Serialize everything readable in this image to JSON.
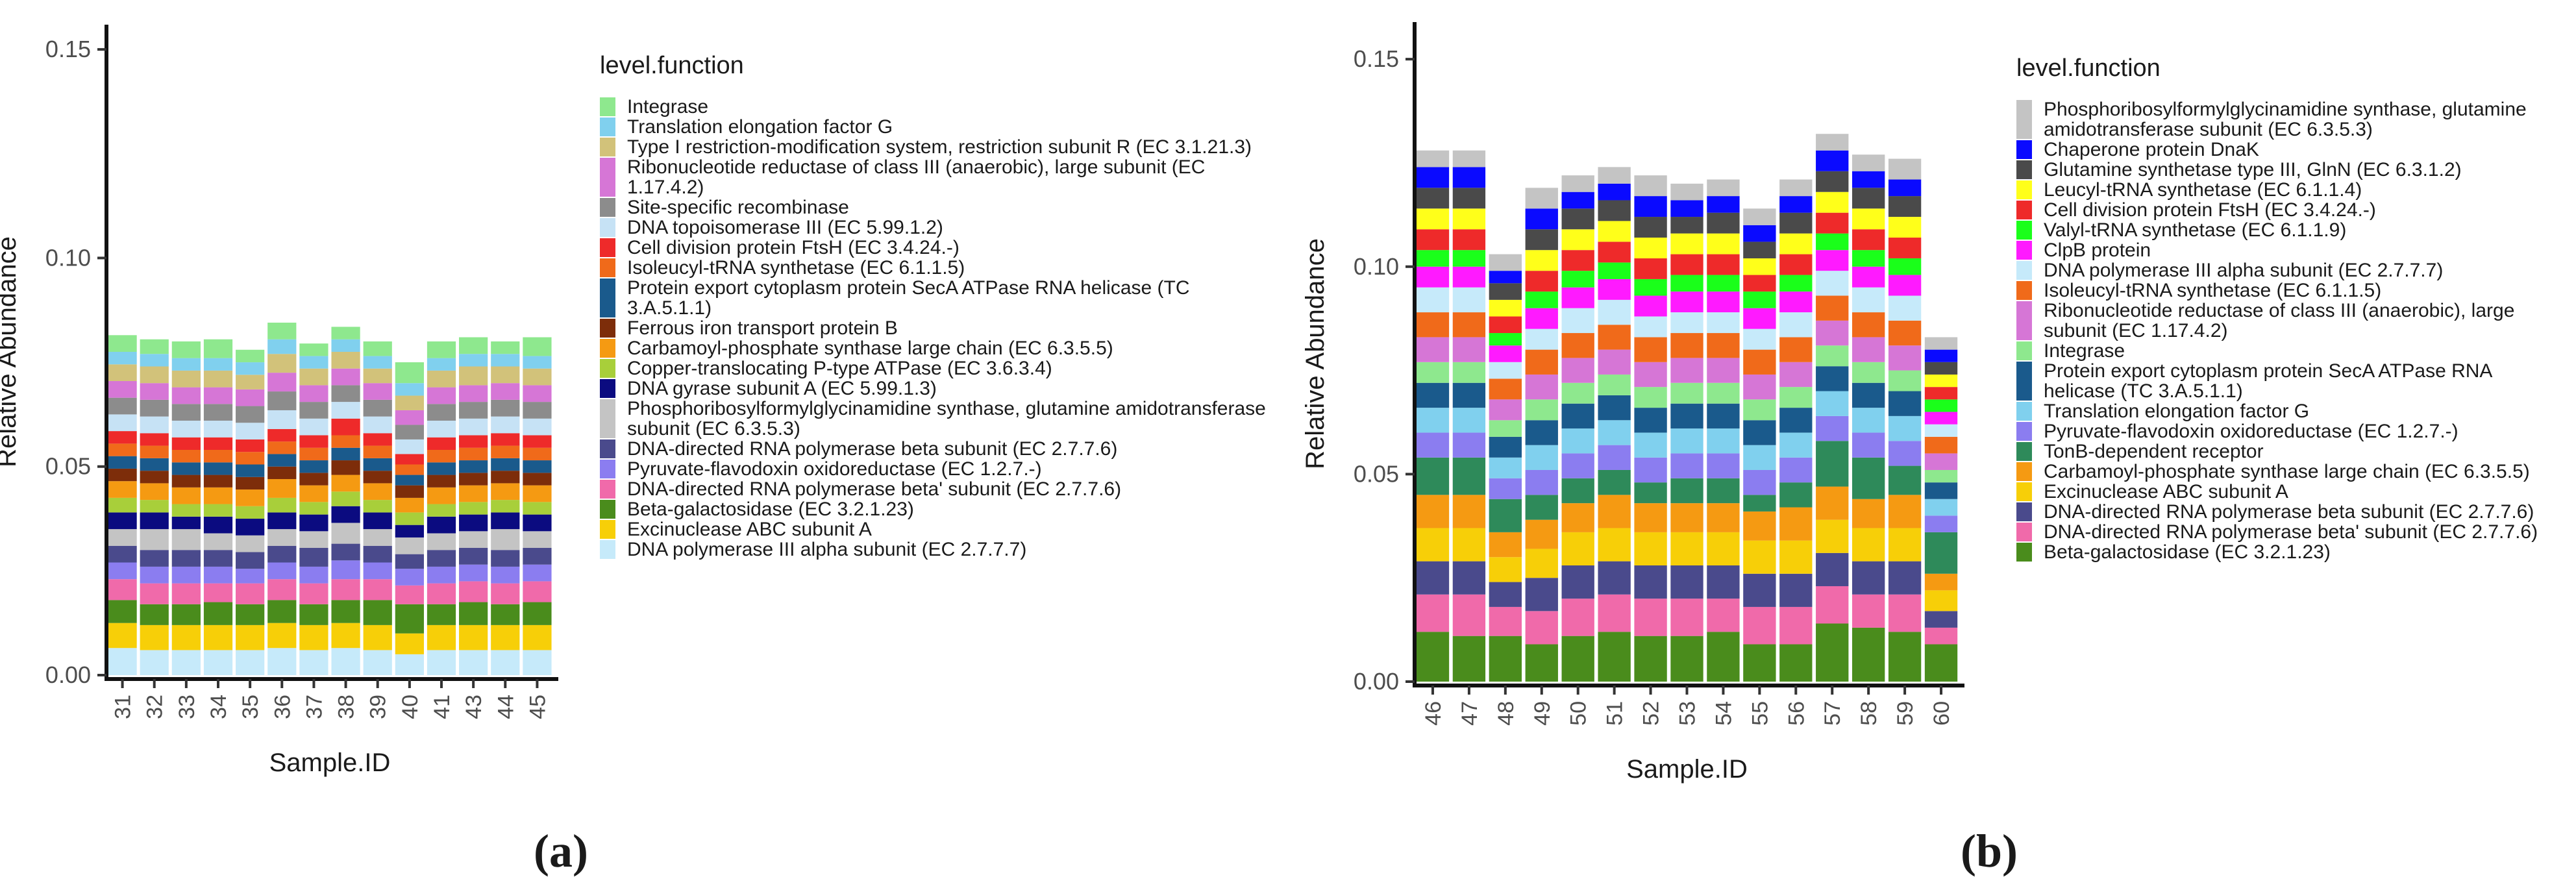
{
  "chart_data": [
    {
      "type": "bar",
      "stacked": true,
      "panel_label": "a",
      "xlabel": "Sample.ID",
      "ylabel": "Relative Abundance",
      "ylim": [
        0,
        0.155
      ],
      "yticks": [
        0.0,
        0.05,
        0.1,
        0.15
      ],
      "ytick_labels": [
        "0.00",
        "0.05",
        "0.10",
        "0.15"
      ],
      "legend_title": "level.function",
      "categories": [
        "31",
        "32",
        "33",
        "34",
        "35",
        "36",
        "37",
        "38",
        "39",
        "40",
        "41",
        "43",
        "44",
        "45"
      ],
      "series": [
        {
          "name": "DNA polymerase III alpha subunit (EC 2.7.7.7)",
          "color": "#c6eafa",
          "values": [
            0.0065,
            0.006,
            0.006,
            0.006,
            0.006,
            0.0065,
            0.006,
            0.0065,
            0.006,
            0.005,
            0.006,
            0.006,
            0.006,
            0.006
          ]
        },
        {
          "name": "Excinuclease ABC subunit A",
          "color": "#f7cf08",
          "values": [
            0.006,
            0.006,
            0.006,
            0.006,
            0.006,
            0.006,
            0.006,
            0.006,
            0.006,
            0.005,
            0.006,
            0.006,
            0.006,
            0.006
          ]
        },
        {
          "name": "Beta-galactosidase (EC 3.2.1.23)",
          "color": "#4a8c1c",
          "values": [
            0.0055,
            0.005,
            0.005,
            0.0055,
            0.005,
            0.0055,
            0.005,
            0.0055,
            0.006,
            0.007,
            0.005,
            0.0055,
            0.005,
            0.0055
          ]
        },
        {
          "name": "DNA-directed RNA polymerase beta' subunit (EC 2.7.7.6)",
          "color": "#f06aaa",
          "values": [
            0.005,
            0.005,
            0.005,
            0.0045,
            0.005,
            0.005,
            0.005,
            0.005,
            0.005,
            0.0045,
            0.005,
            0.005,
            0.005,
            0.005
          ]
        },
        {
          "name": "Pyruvate-flavodoxin oxidoreductase (EC 1.2.7.-)",
          "color": "#8b7df0",
          "values": [
            0.004,
            0.004,
            0.004,
            0.004,
            0.0035,
            0.004,
            0.004,
            0.0045,
            0.004,
            0.004,
            0.004,
            0.004,
            0.004,
            0.004
          ]
        },
        {
          "name": "DNA-directed RNA polymerase beta subunit (EC 2.7.7.6)",
          "color": "#4a4a8c",
          "values": [
            0.004,
            0.004,
            0.004,
            0.004,
            0.004,
            0.004,
            0.0045,
            0.004,
            0.004,
            0.0035,
            0.004,
            0.004,
            0.004,
            0.004
          ]
        },
        {
          "name": "Phosphoribosylformylglycinamidine synthase, glutamine amidotransferase subunit (EC 6.3.5.3)",
          "color": "#c4c4c4",
          "values": [
            0.004,
            0.005,
            0.005,
            0.004,
            0.004,
            0.004,
            0.004,
            0.005,
            0.004,
            0.004,
            0.004,
            0.004,
            0.005,
            0.004
          ]
        },
        {
          "name": "DNA gyrase subunit A (EC 5.99.1.3)",
          "color": "#0b0b80",
          "values": [
            0.004,
            0.004,
            0.003,
            0.004,
            0.004,
            0.004,
            0.004,
            0.004,
            0.004,
            0.003,
            0.004,
            0.004,
            0.004,
            0.004
          ]
        },
        {
          "name": "Copper-translocating P-type ATPase (EC 3.6.3.4)",
          "color": "#a8cf3a",
          "values": [
            0.0035,
            0.003,
            0.003,
            0.003,
            0.003,
            0.0035,
            0.003,
            0.0035,
            0.003,
            0.003,
            0.003,
            0.003,
            0.003,
            0.003
          ]
        },
        {
          "name": "Carbamoyl-phosphate synthase large chain (EC 6.3.5.5)",
          "color": "#f59a12",
          "values": [
            0.004,
            0.004,
            0.004,
            0.004,
            0.004,
            0.0045,
            0.004,
            0.004,
            0.004,
            0.0035,
            0.004,
            0.004,
            0.004,
            0.004
          ]
        },
        {
          "name": "Ferrous iron transport protein B",
          "color": "#7d2d0a",
          "values": [
            0.003,
            0.003,
            0.003,
            0.003,
            0.003,
            0.003,
            0.003,
            0.0035,
            0.003,
            0.003,
            0.003,
            0.003,
            0.003,
            0.003
          ]
        },
        {
          "name": "Protein export cytoplasm protein SecA ATPase RNA helicase (TC 3.A.5.1.1)",
          "color": "#1a5a8c",
          "values": [
            0.003,
            0.003,
            0.003,
            0.003,
            0.003,
            0.003,
            0.003,
            0.003,
            0.003,
            0.0025,
            0.003,
            0.003,
            0.003,
            0.003
          ]
        },
        {
          "name": "Isoleucyl-tRNA synthetase (EC 6.1.1.5)",
          "color": "#f06a1a",
          "values": [
            0.003,
            0.003,
            0.003,
            0.003,
            0.003,
            0.003,
            0.003,
            0.003,
            0.003,
            0.0025,
            0.003,
            0.003,
            0.003,
            0.003
          ]
        },
        {
          "name": "Cell division protein FtsH (EC 3.4.24.-)",
          "color": "#ee2a2a",
          "values": [
            0.003,
            0.003,
            0.003,
            0.003,
            0.003,
            0.003,
            0.003,
            0.004,
            0.003,
            0.0025,
            0.003,
            0.003,
            0.003,
            0.003
          ]
        },
        {
          "name": "DNA topoisomerase III (EC 5.99.1.2)",
          "color": "#c6e2f5",
          "values": [
            0.004,
            0.004,
            0.004,
            0.004,
            0.004,
            0.0045,
            0.004,
            0.004,
            0.004,
            0.0035,
            0.004,
            0.004,
            0.004,
            0.004
          ]
        },
        {
          "name": "Site-specific recombinase",
          "color": "#8c8c8c",
          "values": [
            0.004,
            0.004,
            0.004,
            0.004,
            0.004,
            0.0045,
            0.004,
            0.004,
            0.004,
            0.0035,
            0.004,
            0.004,
            0.004,
            0.004
          ]
        },
        {
          "name": "Ribonucleotide reductase of class III (anaerobic), large subunit (EC 1.17.4.2)",
          "color": "#d676d6",
          "values": [
            0.004,
            0.004,
            0.004,
            0.004,
            0.004,
            0.0045,
            0.004,
            0.004,
            0.004,
            0.0035,
            0.004,
            0.004,
            0.004,
            0.004
          ]
        },
        {
          "name": "Type I restriction-modification system, restriction subunit R (EC 3.1.21.3)",
          "color": "#d2c27a",
          "values": [
            0.004,
            0.004,
            0.004,
            0.004,
            0.0035,
            0.0045,
            0.004,
            0.004,
            0.0035,
            0.0035,
            0.004,
            0.0045,
            0.004,
            0.004
          ]
        },
        {
          "name": "Translation elongation factor G",
          "color": "#80d0ee",
          "values": [
            0.003,
            0.003,
            0.003,
            0.003,
            0.003,
            0.0035,
            0.003,
            0.003,
            0.003,
            0.003,
            0.003,
            0.003,
            0.003,
            0.003
          ]
        },
        {
          "name": "Integrase",
          "color": "#8ee88e",
          "values": [
            0.004,
            0.0035,
            0.004,
            0.0045,
            0.003,
            0.004,
            0.003,
            0.003,
            0.0035,
            0.005,
            0.004,
            0.004,
            0.003,
            0.0045
          ]
        }
      ]
    },
    {
      "type": "bar",
      "stacked": true,
      "panel_label": "b",
      "xlabel": "Sample.ID",
      "ylabel": "Relative Abundance",
      "ylim": [
        0,
        0.158
      ],
      "yticks": [
        0.0,
        0.05,
        0.1,
        0.15
      ],
      "ytick_labels": [
        "0.00",
        "0.05",
        "0.10",
        "0.15"
      ],
      "legend_title": "level.function",
      "categories": [
        "46",
        "47",
        "48",
        "49",
        "50",
        "51",
        "52",
        "53",
        "54",
        "55",
        "56",
        "57",
        "58",
        "59",
        "60"
      ],
      "series": [
        {
          "name": "Beta-galactosidase (EC 3.2.1.23)",
          "color": "#4a8c1c",
          "values": [
            0.012,
            0.011,
            0.011,
            0.009,
            0.011,
            0.012,
            0.011,
            0.011,
            0.012,
            0.009,
            0.009,
            0.014,
            0.013,
            0.012,
            0.009
          ]
        },
        {
          "name": "DNA-directed RNA polymerase beta' subunit (EC 2.7.7.6)",
          "color": "#f06aaa",
          "values": [
            0.009,
            0.01,
            0.007,
            0.008,
            0.009,
            0.009,
            0.009,
            0.009,
            0.008,
            0.009,
            0.009,
            0.009,
            0.008,
            0.009,
            0.004
          ]
        },
        {
          "name": "DNA-directed RNA polymerase beta subunit (EC 2.7.7.6)",
          "color": "#4a4a8c",
          "values": [
            0.008,
            0.008,
            0.006,
            0.008,
            0.008,
            0.008,
            0.008,
            0.008,
            0.008,
            0.008,
            0.008,
            0.008,
            0.008,
            0.008,
            0.004
          ]
        },
        {
          "name": "Excinuclease ABC subunit A",
          "color": "#f7cf08",
          "values": [
            0.008,
            0.008,
            0.006,
            0.007,
            0.008,
            0.008,
            0.008,
            0.008,
            0.008,
            0.008,
            0.008,
            0.008,
            0.008,
            0.008,
            0.005
          ]
        },
        {
          "name": "Carbamoyl-phosphate synthase large chain (EC 6.3.5.5)",
          "color": "#f59a12",
          "values": [
            0.008,
            0.008,
            0.006,
            0.007,
            0.007,
            0.008,
            0.007,
            0.007,
            0.007,
            0.007,
            0.008,
            0.008,
            0.007,
            0.008,
            0.004
          ]
        },
        {
          "name": "TonB-dependent receptor",
          "color": "#2e8a5a",
          "values": [
            0.009,
            0.009,
            0.008,
            0.006,
            0.006,
            0.006,
            0.005,
            0.006,
            0.006,
            0.004,
            0.006,
            0.011,
            0.01,
            0.007,
            0.01
          ]
        },
        {
          "name": "Pyruvate-flavodoxin oxidoreductase (EC 1.2.7.-)",
          "color": "#8b7df0",
          "values": [
            0.006,
            0.006,
            0.005,
            0.006,
            0.006,
            0.006,
            0.006,
            0.006,
            0.006,
            0.006,
            0.006,
            0.006,
            0.006,
            0.006,
            0.004
          ]
        },
        {
          "name": "Translation elongation factor G",
          "color": "#80d0ee",
          "values": [
            0.006,
            0.006,
            0.005,
            0.006,
            0.006,
            0.006,
            0.006,
            0.006,
            0.006,
            0.006,
            0.006,
            0.006,
            0.006,
            0.006,
            0.004
          ]
        },
        {
          "name": "Protein export cytoplasm protein SecA ATPase RNA helicase (TC 3.A.5.1.1)",
          "color": "#1a5a8c",
          "values": [
            0.006,
            0.006,
            0.005,
            0.006,
            0.006,
            0.006,
            0.006,
            0.006,
            0.006,
            0.006,
            0.006,
            0.006,
            0.006,
            0.006,
            0.004
          ]
        },
        {
          "name": "Integrase",
          "color": "#8ee88e",
          "values": [
            0.005,
            0.005,
            0.004,
            0.005,
            0.005,
            0.005,
            0.005,
            0.005,
            0.005,
            0.005,
            0.005,
            0.005,
            0.005,
            0.005,
            0.003
          ]
        },
        {
          "name": "Ribonucleotide reductase of class III (anaerobic), large subunit (EC 1.17.4.2)",
          "color": "#d676d6",
          "values": [
            0.006,
            0.006,
            0.005,
            0.006,
            0.006,
            0.006,
            0.006,
            0.006,
            0.006,
            0.006,
            0.006,
            0.006,
            0.006,
            0.006,
            0.004
          ]
        },
        {
          "name": "Isoleucyl-tRNA synthetase (EC 6.1.1.5)",
          "color": "#f06a1a",
          "values": [
            0.006,
            0.006,
            0.005,
            0.006,
            0.006,
            0.006,
            0.006,
            0.006,
            0.006,
            0.006,
            0.006,
            0.006,
            0.006,
            0.006,
            0.004
          ]
        },
        {
          "name": "DNA polymerase III alpha subunit (EC 2.7.7.7)",
          "color": "#c6eafa",
          "values": [
            0.006,
            0.006,
            0.004,
            0.005,
            0.006,
            0.006,
            0.005,
            0.005,
            0.005,
            0.005,
            0.006,
            0.006,
            0.006,
            0.006,
            0.003
          ]
        },
        {
          "name": "ClpB protein",
          "color": "#ff1aff",
          "values": [
            0.005,
            0.005,
            0.004,
            0.005,
            0.005,
            0.005,
            0.005,
            0.005,
            0.005,
            0.005,
            0.005,
            0.005,
            0.005,
            0.005,
            0.003
          ]
        },
        {
          "name": "Valyl-tRNA synthetase (EC 6.1.1.9)",
          "color": "#1aff1a",
          "values": [
            0.004,
            0.004,
            0.003,
            0.004,
            0.004,
            0.004,
            0.004,
            0.004,
            0.004,
            0.004,
            0.004,
            0.004,
            0.004,
            0.004,
            0.003
          ]
        },
        {
          "name": "Cell division protein FtsH (EC 3.4.24.-)",
          "color": "#ee2a2a",
          "values": [
            0.005,
            0.005,
            0.004,
            0.005,
            0.005,
            0.005,
            0.005,
            0.005,
            0.005,
            0.004,
            0.005,
            0.005,
            0.005,
            0.005,
            0.003
          ]
        },
        {
          "name": "Leucyl-tRNA synthetase (EC 6.1.1.4)",
          "color": "#ffff1a",
          "values": [
            0.005,
            0.005,
            0.004,
            0.005,
            0.005,
            0.005,
            0.005,
            0.005,
            0.005,
            0.004,
            0.005,
            0.005,
            0.005,
            0.005,
            0.003
          ]
        },
        {
          "name": "Glutamine synthetase type III, GlnN (EC 6.3.1.2)",
          "color": "#4a4a4a",
          "values": [
            0.005,
            0.005,
            0.004,
            0.005,
            0.005,
            0.005,
            0.005,
            0.004,
            0.005,
            0.004,
            0.005,
            0.005,
            0.005,
            0.005,
            0.003
          ]
        },
        {
          "name": "Chaperone protein DnaK",
          "color": "#0a0aff",
          "values": [
            0.005,
            0.005,
            0.003,
            0.005,
            0.004,
            0.004,
            0.005,
            0.004,
            0.004,
            0.004,
            0.004,
            0.005,
            0.004,
            0.004,
            0.003
          ]
        },
        {
          "name": "Phosphoribosylformylglycinamidine synthase, glutamine amidotransferase subunit (EC 6.3.5.3)",
          "color": "#c4c4c4",
          "values": [
            0.004,
            0.004,
            0.004,
            0.005,
            0.004,
            0.004,
            0.005,
            0.004,
            0.004,
            0.004,
            0.004,
            0.004,
            0.004,
            0.005,
            0.003
          ]
        }
      ],
      "legend_order_reversed": true
    }
  ],
  "captions": {
    "a": "(a)",
    "b": "(b)"
  }
}
